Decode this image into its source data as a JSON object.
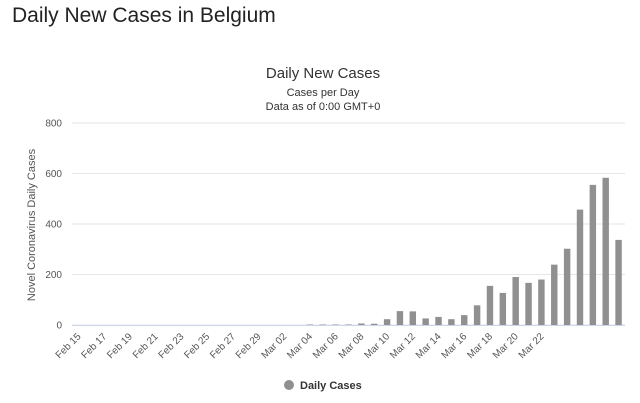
{
  "page": {
    "heading": "Daily New Cases in Belgium"
  },
  "chart_data": {
    "type": "bar",
    "title": "Daily New Cases",
    "subtitle_line1": "Cases per Day",
    "subtitle_line2": "Data as of 0:00 GMT+0",
    "ylabel": "Novel Coronavirus Daily Cases",
    "xlabel": "",
    "ylim": [
      0,
      800
    ],
    "yticks": [
      0,
      200,
      400,
      600,
      800
    ],
    "grid": true,
    "legend_position": "bottom-center",
    "bar_color": "#909090",
    "series": [
      {
        "name": "Daily Cases",
        "values": [
          0,
          0,
          0,
          0,
          0,
          0,
          0,
          0,
          0,
          0,
          0,
          0,
          0,
          0,
          0,
          0,
          0,
          0,
          2,
          2,
          2,
          2,
          6,
          5,
          23,
          55,
          54,
          26,
          32,
          23,
          39,
          78,
          155,
          127,
          190,
          167,
          180,
          239,
          302,
          457,
          555,
          583,
          337
        ]
      }
    ],
    "categories": [
      "Feb 15",
      "Feb 16",
      "Feb 17",
      "Feb 18",
      "Feb 19",
      "Feb 20",
      "Feb 21",
      "Feb 22",
      "Feb 23",
      "Feb 24",
      "Feb 25",
      "Feb 26",
      "Feb 27",
      "Feb 28",
      "Feb 29",
      "Mar 01",
      "Mar 02",
      "Mar 03",
      "Mar 04",
      "Mar 05",
      "Mar 06",
      "Mar 07",
      "Mar 08",
      "Mar 09",
      "Mar 10",
      "Mar 11",
      "Mar 12",
      "Mar 13",
      "Mar 14",
      "Mar 15",
      "Mar 16",
      "Mar 17",
      "Mar 18",
      "Mar 19",
      "Mar 20",
      "Mar 21",
      "Mar 22",
      "Mar 23",
      "Mar 24",
      "Mar 25",
      "Mar 26",
      "Mar 27",
      "Mar 28"
    ],
    "tick_labels": [
      "Feb 15",
      "Feb 17",
      "Feb 19",
      "Feb 21",
      "Feb 23",
      "Feb 25",
      "Feb 27",
      "Feb 29",
      "Mar 02",
      "Mar 04",
      "Mar 06",
      "Mar 08",
      "Mar 10",
      "Mar 12",
      "Mar 14",
      "Mar 16",
      "Mar 18",
      "Mar 20",
      "Mar 22"
    ]
  }
}
